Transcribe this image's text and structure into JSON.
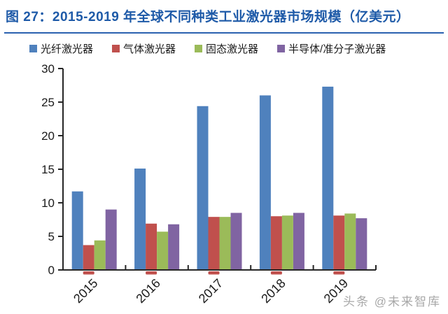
{
  "title": {
    "text": "图 27：2015-2019 年全球不同种类工业激光器市场规模（亿美元）"
  },
  "watermark": {
    "text": "头条 @未来智库"
  },
  "colors": {
    "title": "#1E5AA8",
    "underline": "#2A62B0",
    "axis": "#262626",
    "tick_label": "#1a1a1a",
    "watermark": "#a8a8a8"
  },
  "chart_data": {
    "type": "bar",
    "title": "2015-2019 年全球不同种类工业激光器市场规模（亿美元）",
    "categories": [
      "2015",
      "2016",
      "2017",
      "2018",
      "2019"
    ],
    "series": [
      {
        "name": "光纤激光器",
        "color": "#4F81BD",
        "values": [
          11.7,
          15.1,
          24.4,
          26.0,
          27.3
        ]
      },
      {
        "name": "气体激光器",
        "color": "#C0504D",
        "values": [
          3.7,
          6.9,
          7.9,
          8.0,
          8.1
        ]
      },
      {
        "name": "固态激光器",
        "color": "#9BBB59",
        "values": [
          4.4,
          5.7,
          7.9,
          8.1,
          8.4
        ]
      },
      {
        "name": "半导体/准分子激光器",
        "color": "#8064A2",
        "values": [
          9.0,
          6.8,
          8.5,
          8.5,
          7.7
        ]
      }
    ],
    "xlabel": "",
    "ylabel": "",
    "ylim": [
      0,
      30
    ],
    "yticks": [
      0,
      5,
      10,
      15,
      20,
      25,
      30
    ],
    "legend_position": "top",
    "grid": false,
    "x_tick_rotation": -45
  }
}
